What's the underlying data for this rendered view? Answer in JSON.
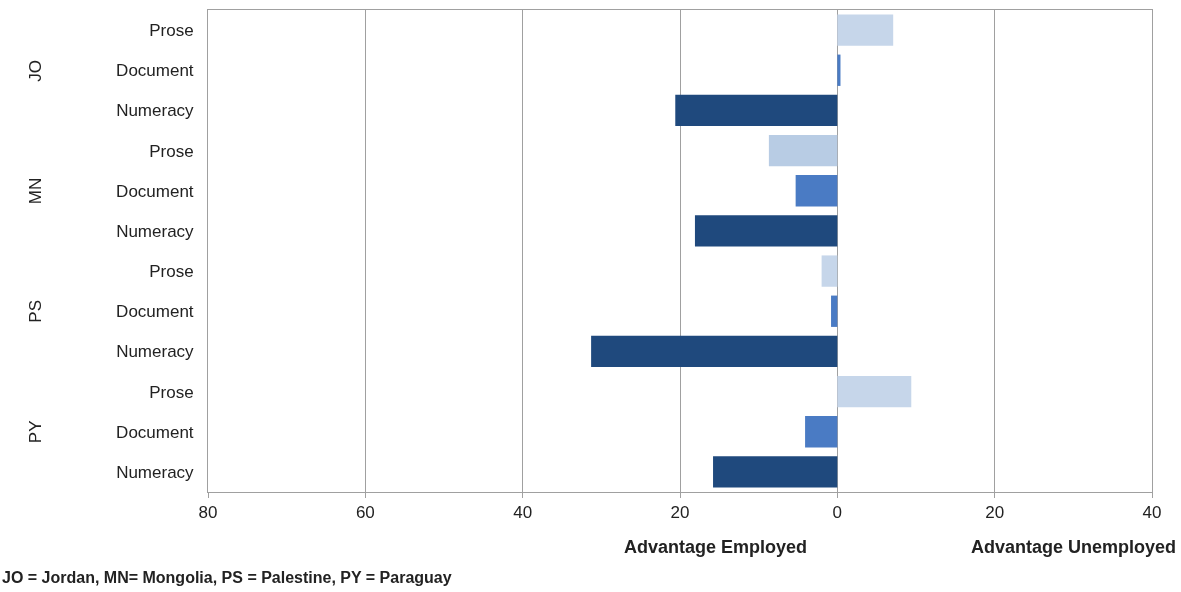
{
  "chart_data": {
    "type": "bar",
    "orientation": "horizontal",
    "categories": [
      "Prose",
      "Document",
      "Numeracy",
      "Prose",
      "Document",
      "Numeracy",
      "Prose",
      "Document",
      "Numeracy",
      "Prose",
      "Document",
      "Numeracy"
    ],
    "values": [
      7.1,
      0.4,
      -20.6,
      -8.7,
      -5.3,
      -18.1,
      -2.0,
      -0.8,
      -31.3,
      9.4,
      -4.1,
      -15.8
    ],
    "colors": [
      "#c6d6ea",
      "#4a7bc4",
      "#1f497d",
      "#b8cce4",
      "#4a7bc4",
      "#1f497d",
      "#c6d6ea",
      "#4a7bc4",
      "#1f497d",
      "#c6d6ea",
      "#4a7bc4",
      "#1f497d"
    ],
    "xlim": [
      -80,
      40
    ],
    "xticks": [
      {
        "value": -80,
        "label": "80"
      },
      {
        "value": -60,
        "label": "60"
      },
      {
        "value": -40,
        "label": "40"
      },
      {
        "value": -20,
        "label": "20"
      },
      0,
      20,
      40
    ],
    "grid": "x",
    "legend": false,
    "annotations": [
      "JO",
      "MN",
      "PS",
      "PY",
      "Advantage Employed",
      "Advantage Unemployed",
      "JO = Jordan, MN= Mongolia, PS = Palestine, PY = Paraguay"
    ]
  }
}
